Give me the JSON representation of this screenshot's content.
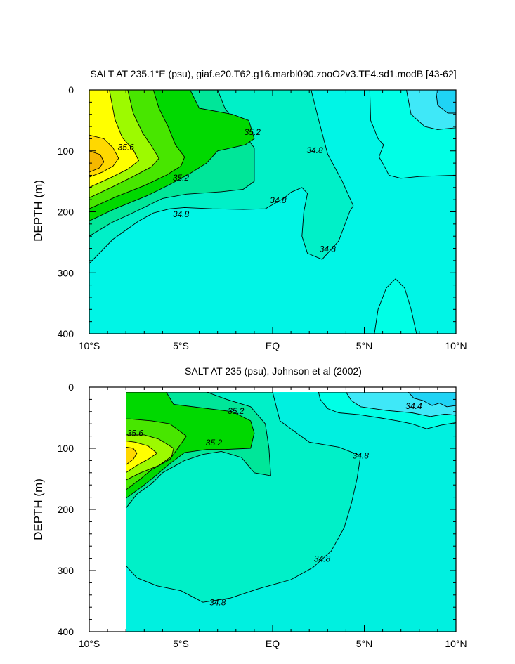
{
  "colors": {
    "34.4": "#1fd3f5",
    "34.6": "#3fe8f8",
    "34.7": "#00ffe6",
    "34.8": "#00f0c8",
    "35.0": "#00e699",
    "35.2": "#00d900",
    "35.4": "#48e600",
    "35.6": "#9dfa00",
    "35.8": "#ffff00",
    "36.0": "#ffd800",
    "36.2": "#f5b800",
    "panel_bg_upper": "#00f5e6",
    "panel_bg_lower": "#00f0e0"
  },
  "chart_data": [
    {
      "type": "contour",
      "title": "SALT AT 235.1°E (psu), giaf.e20.T62.g16.marbl090.zooO2v3.TF4.sd1.modB [43-62]",
      "xlabel": "",
      "ylabel": "DEPTH (m)",
      "x_ticks": [
        "10°S",
        "5°S",
        "EQ",
        "5°N",
        "10°N"
      ],
      "y_ticks": [
        "0",
        "100",
        "200",
        "300",
        "400"
      ],
      "xlim": [
        -10,
        10
      ],
      "ylim": [
        400,
        0
      ],
      "y_reversed": true,
      "contour_labels": [
        {
          "text": "35.6",
          "lat": -8.0,
          "depth": 95
        },
        {
          "text": "35.2",
          "lat": -1.1,
          "depth": 70
        },
        {
          "text": "35.2",
          "lat": -5.0,
          "depth": 145
        },
        {
          "text": "34.8",
          "lat": -5.0,
          "depth": 205
        },
        {
          "text": "34.8",
          "lat": 0.3,
          "depth": 182
        },
        {
          "text": "34.8",
          "lat": 2.3,
          "depth": 100
        },
        {
          "text": "34.8",
          "lat": 3.0,
          "depth": 262
        }
      ],
      "regions": [
        {
          "value": "34.7",
          "points": [
            [
              5.55,
              400
            ],
            [
              5.75,
              360
            ],
            [
              6.2,
              325
            ],
            [
              6.7,
              310
            ],
            [
              7.2,
              325
            ],
            [
              7.55,
              360
            ],
            [
              7.85,
              400
            ]
          ]
        },
        {
          "value": "34.7",
          "points": [
            [
              5.3,
              0
            ],
            [
              5.35,
              50
            ],
            [
              5.75,
              80
            ],
            [
              6.05,
              90
            ],
            [
              5.8,
              110
            ],
            [
              6.0,
              120
            ],
            [
              6.35,
              140
            ],
            [
              7.0,
              145
            ],
            [
              8.0,
              142
            ],
            [
              10,
              140
            ],
            [
              10,
              0
            ]
          ]
        },
        {
          "value": "34.6",
          "points": [
            [
              7.3,
              0
            ],
            [
              7.55,
              40
            ],
            [
              8.3,
              60
            ],
            [
              9.0,
              65
            ],
            [
              10,
              62
            ],
            [
              10,
              0
            ]
          ]
        },
        {
          "value": "34.4",
          "points": [
            [
              8.9,
              0
            ],
            [
              9.0,
              25
            ],
            [
              9.55,
              38
            ],
            [
              10,
              38
            ],
            [
              10,
              0
            ]
          ]
        },
        {
          "value": "34.8",
          "points": [
            [
              -10,
              285
            ],
            [
              -8.7,
              245
            ],
            [
              -7.3,
              215
            ],
            [
              -6.5,
              202
            ],
            [
              -5.6,
              195
            ],
            [
              -4.8,
              193
            ],
            [
              -3.3,
              195
            ],
            [
              -1.6,
              196
            ],
            [
              -0.4,
              195
            ],
            [
              0.6,
              178
            ],
            [
              1.0,
              168
            ],
            [
              1.6,
              160
            ],
            [
              1.9,
              170
            ],
            [
              1.7,
              200
            ],
            [
              1.6,
              240
            ],
            [
              1.9,
              268
            ],
            [
              2.7,
              278
            ],
            [
              3.6,
              248
            ],
            [
              4.2,
              200
            ],
            [
              4.4,
              190
            ],
            [
              3.8,
              150
            ],
            [
              3.0,
              105
            ],
            [
              2.5,
              48
            ],
            [
              2.1,
              0
            ],
            [
              -10,
              0
            ]
          ]
        },
        {
          "value": "35.0",
          "points": [
            [
              -10,
              240
            ],
            [
              -8.8,
              218
            ],
            [
              -7.5,
              200
            ],
            [
              -6.0,
              178
            ],
            [
              -4.7,
              171
            ],
            [
              -2.8,
              167
            ],
            [
              -1.6,
              163
            ],
            [
              -1.0,
              150
            ],
            [
              -1.0,
              95
            ],
            [
              -2.0,
              55
            ],
            [
              -2.6,
              30
            ],
            [
              -3.0,
              0
            ],
            [
              -10,
              0
            ]
          ]
        },
        {
          "value": "35.2",
          "points": [
            [
              -10,
              215
            ],
            [
              -8.6,
              195
            ],
            [
              -6.8,
              173
            ],
            [
              -5.6,
              155
            ],
            [
              -4.5,
              137
            ],
            [
              -3.6,
              120
            ],
            [
              -3.0,
              100
            ],
            [
              -1.5,
              90
            ],
            [
              -1.0,
              80
            ],
            [
              -1.3,
              50
            ],
            [
              -2.2,
              40
            ],
            [
              -4.0,
              30
            ],
            [
              -4.5,
              0
            ],
            [
              -10,
              0
            ]
          ]
        },
        {
          "value": "35.4",
          "points": [
            [
              -10,
              195
            ],
            [
              -8.6,
              176
            ],
            [
              -7.0,
              157
            ],
            [
              -5.8,
              140
            ],
            [
              -5.0,
              125
            ],
            [
              -4.8,
              110
            ],
            [
              -5.3,
              90
            ],
            [
              -5.7,
              60
            ],
            [
              -6.2,
              30
            ],
            [
              -6.5,
              0
            ],
            [
              -10,
              0
            ]
          ]
        },
        {
          "value": "35.6",
          "points": [
            [
              -10,
              177
            ],
            [
              -8.8,
              160
            ],
            [
              -7.6,
              142
            ],
            [
              -6.6,
              126
            ],
            [
              -6.2,
              112
            ],
            [
              -6.6,
              92
            ],
            [
              -7.1,
              70
            ],
            [
              -7.6,
              38
            ],
            [
              -7.9,
              0
            ],
            [
              -10,
              0
            ]
          ]
        },
        {
          "value": "35.8",
          "points": [
            [
              -10,
              160
            ],
            [
              -8.9,
              145
            ],
            [
              -7.9,
              130
            ],
            [
              -7.3,
              116
            ],
            [
              -7.6,
              98
            ],
            [
              -8.2,
              78
            ],
            [
              -8.6,
              48
            ],
            [
              -8.9,
              0
            ],
            [
              -10,
              0
            ]
          ]
        },
        {
          "value": "36.0",
          "points": [
            [
              -10,
              143
            ],
            [
              -9.3,
              135
            ],
            [
              -8.7,
              125
            ],
            [
              -8.4,
              112
            ],
            [
              -8.7,
              95
            ],
            [
              -9.2,
              80
            ],
            [
              -10,
              74
            ]
          ]
        },
        {
          "value": "36.2",
          "points": [
            [
              -10,
              135
            ],
            [
              -9.45,
              128
            ],
            [
              -9.2,
              118
            ],
            [
              -9.4,
              106
            ],
            [
              -10,
              100
            ]
          ]
        }
      ]
    },
    {
      "type": "contour",
      "title": "SALT AT 235 (psu), Johnson et al (2002)",
      "xlabel": "",
      "ylabel": "DEPTH (m)",
      "x_ticks": [
        "10°S",
        "5°S",
        "EQ",
        "5°N",
        "10°N"
      ],
      "y_ticks": [
        "0",
        "100",
        "200",
        "300",
        "400"
      ],
      "xlim": [
        -10,
        10
      ],
      "ylim": [
        400,
        0
      ],
      "y_reversed": true,
      "data_xlim": [
        -8,
        10
      ],
      "contour_labels": [
        {
          "text": "35.6",
          "lat": -7.5,
          "depth": 76
        },
        {
          "text": "35.2",
          "lat": -2.0,
          "depth": 40
        },
        {
          "text": "35.2",
          "lat": -3.2,
          "depth": 92
        },
        {
          "text": "34.4",
          "lat": 7.7,
          "depth": 32
        },
        {
          "text": "34.8",
          "lat": 4.8,
          "depth": 113
        },
        {
          "text": "34.8",
          "lat": 2.7,
          "depth": 282
        },
        {
          "text": "34.8",
          "lat": -3.0,
          "depth": 353
        }
      ],
      "regions": [
        {
          "value": "34.8",
          "points": [
            [
              -8,
              292
            ],
            [
              -7.4,
              312
            ],
            [
              -6.3,
              325
            ],
            [
              -5.0,
              333
            ],
            [
              -3.8,
              352
            ],
            [
              -2.3,
              345
            ],
            [
              -0.8,
              330
            ],
            [
              1.0,
              315
            ],
            [
              2.2,
              295
            ],
            [
              3.2,
              268
            ],
            [
              3.9,
              230
            ],
            [
              4.3,
              190
            ],
            [
              4.6,
              150
            ],
            [
              4.8,
              112
            ],
            [
              3.6,
              98
            ],
            [
              2.0,
              90
            ],
            [
              0.4,
              55
            ],
            [
              0,
              8
            ],
            [
              -8,
              8
            ]
          ]
        },
        {
          "value": "35.0",
          "points": [
            [
              -8,
              198
            ],
            [
              -7.4,
              175
            ],
            [
              -6.6,
              158
            ],
            [
              -6.0,
              140
            ],
            [
              -4.8,
              120
            ],
            [
              -3.8,
              110
            ],
            [
              -2.8,
              105
            ],
            [
              -1.7,
              115
            ],
            [
              -1.0,
              140
            ],
            [
              -0.1,
              145
            ],
            [
              -0.2,
              100
            ],
            [
              -0.4,
              60
            ],
            [
              -1.2,
              32
            ],
            [
              -2.5,
              20
            ],
            [
              -3.6,
              8
            ],
            [
              -8,
              8
            ]
          ]
        },
        {
          "value": "35.2",
          "points": [
            [
              -8,
              182
            ],
            [
              -7.0,
              160
            ],
            [
              -6.3,
              143
            ],
            [
              -5.6,
              125
            ],
            [
              -4.8,
              107
            ],
            [
              -3.6,
              102
            ],
            [
              -2.6,
              102
            ],
            [
              -1.2,
              100
            ],
            [
              -1.0,
              75
            ],
            [
              -1.2,
              55
            ],
            [
              -2.2,
              40
            ],
            [
              -5.4,
              28
            ],
            [
              -5.8,
              8
            ],
            [
              -8,
              8
            ]
          ]
        },
        {
          "value": "35.4",
          "points": [
            [
              -8,
              168
            ],
            [
              -7.2,
              150
            ],
            [
              -6.6,
              135
            ],
            [
              -5.6,
              118
            ],
            [
              -5.0,
              93
            ],
            [
              -4.7,
              80
            ],
            [
              -5.6,
              60
            ],
            [
              -6.6,
              55
            ],
            [
              -7.8,
              52
            ],
            [
              -8,
              52
            ]
          ]
        },
        {
          "value": "35.6",
          "points": [
            [
              -8,
              152
            ],
            [
              -7.2,
              140
            ],
            [
              -6.2,
              128
            ],
            [
              -5.5,
              113
            ],
            [
              -5.4,
              100
            ],
            [
              -6.2,
              85
            ],
            [
              -7.0,
              78
            ],
            [
              -8,
              78
            ]
          ]
        },
        {
          "value": "35.8",
          "points": [
            [
              -8,
              140
            ],
            [
              -7.4,
              128
            ],
            [
              -6.8,
              118
            ],
            [
              -6.3,
              108
            ],
            [
              -6.8,
              96
            ],
            [
              -7.5,
              90
            ],
            [
              -8,
              88
            ]
          ]
        },
        {
          "value": "36.0",
          "points": [
            [
              -8,
              127
            ],
            [
              -7.6,
              118
            ],
            [
              -7.4,
              108
            ],
            [
              -7.6,
              100
            ],
            [
              -8,
              98
            ]
          ]
        },
        {
          "value": "34.7",
          "points": [
            [
              2.5,
              8
            ],
            [
              2.6,
              20
            ],
            [
              3.0,
              35
            ],
            [
              3.6,
              42
            ],
            [
              4.7,
              45
            ],
            [
              5.8,
              50
            ],
            [
              6.8,
              55
            ],
            [
              7.6,
              60
            ],
            [
              8.4,
              68
            ],
            [
              9.2,
              62
            ],
            [
              10,
              58
            ],
            [
              10,
              8
            ]
          ]
        },
        {
          "value": "34.6",
          "points": [
            [
              4.0,
              8
            ],
            [
              4.3,
              22
            ],
            [
              4.8,
              32
            ],
            [
              6.2,
              38
            ],
            [
              7.6,
              42
            ],
            [
              8.6,
              48
            ],
            [
              9.4,
              44
            ],
            [
              10,
              46
            ],
            [
              10,
              8
            ]
          ]
        },
        {
          "value": "34.4",
          "points": [
            [
              7.4,
              8
            ],
            [
              7.7,
              18
            ],
            [
              8.2,
              22
            ],
            [
              8.7,
              30
            ],
            [
              9.1,
              26
            ],
            [
              9.5,
              32
            ],
            [
              10,
              30
            ],
            [
              10,
              8
            ]
          ]
        }
      ]
    }
  ]
}
